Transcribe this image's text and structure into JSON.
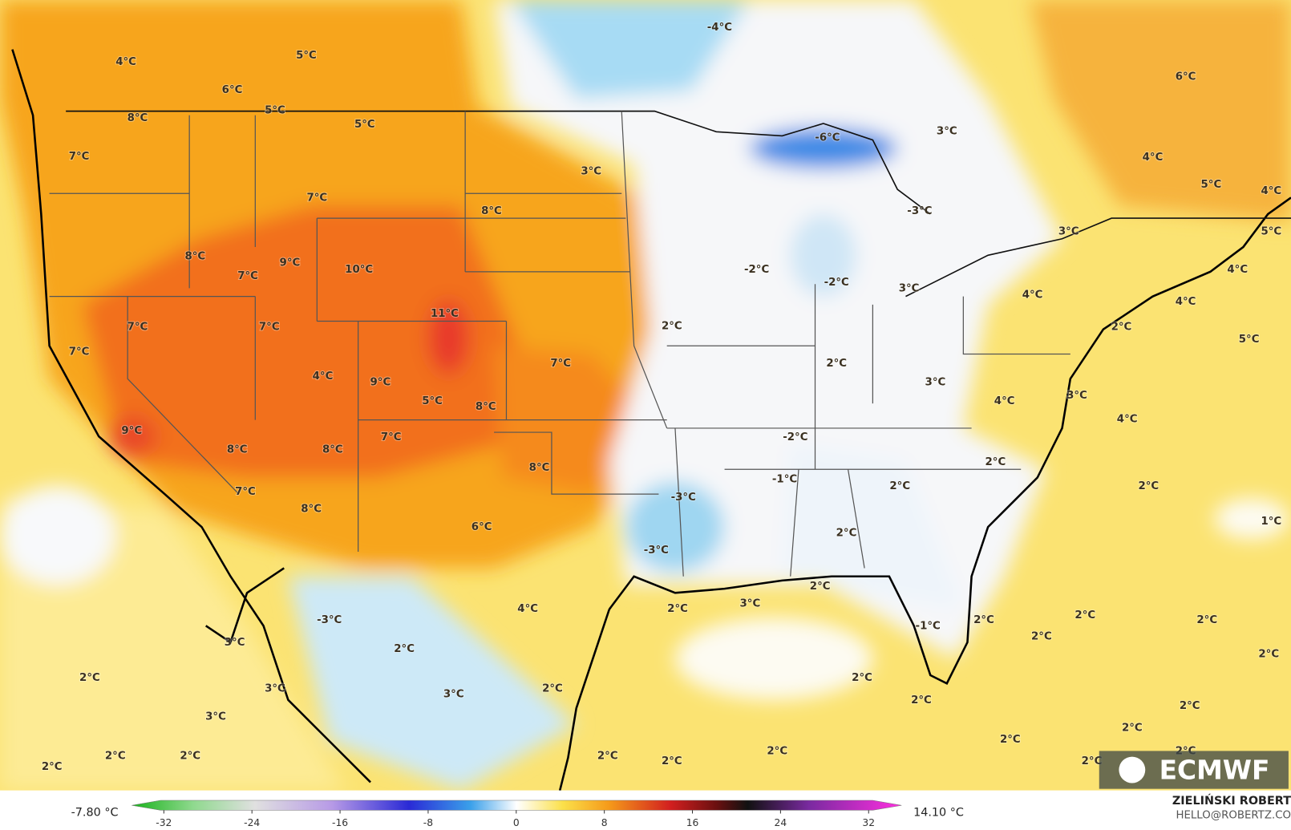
{
  "map": {
    "labels": [
      "4°C",
      "5°C",
      "6°C",
      "5°C",
      "8°C",
      "5°C",
      "7°C",
      "7°C",
      "3°C",
      "8°C",
      "8°C",
      "7°C",
      "9°C",
      "10°C",
      "11°C",
      "7°C",
      "7°C",
      "7°C",
      "4°C",
      "9°C",
      "5°C",
      "8°C",
      "7°C",
      "9°C",
      "8°C",
      "8°C",
      "7°C",
      "8°C",
      "7°C",
      "8°C",
      "6°C",
      "-4°C",
      "-6°C",
      "-3°C",
      "-2°C",
      "-2°C",
      "3°C",
      "2°C",
      "2°C",
      "3°C",
      "-2°C",
      "-1°C",
      "-3°C",
      "-3°C",
      "2°C",
      "2°C",
      "2°C",
      "4°C",
      "3°C",
      "4°C",
      "4°C",
      "3°C",
      "3°C",
      "6°C",
      "4°C",
      "5°C",
      "4°C",
      "5°C",
      "4°C",
      "4°C",
      "2°C",
      "5°C",
      "2°C",
      "1°C",
      "2°C",
      "2°C",
      "3°C",
      "4°C",
      "-3°C",
      "3°C",
      "2°C",
      "2°C",
      "-1°C",
      "2°C",
      "2°C",
      "2°C",
      "2°C",
      "2°C",
      "3°C",
      "3°C",
      "3°C",
      "2°C",
      "2°C",
      "2°C",
      "2°C",
      "2°C",
      "2°C",
      "2°C",
      "2°C",
      "2°C",
      "2°C",
      "2°C",
      "2°C",
      "2°C",
      "2°C"
    ]
  },
  "legend": {
    "min": "-7.80 °C",
    "max": "14.10 °C",
    "ticks": [
      -32,
      -24,
      -16,
      -8,
      0,
      8,
      16,
      24,
      32
    ]
  },
  "credit": {
    "logo": "ECMWF",
    "author": "ZIELIŃSKI ROBERT",
    "email": "HELLO@ROBERTZ.CO"
  }
}
